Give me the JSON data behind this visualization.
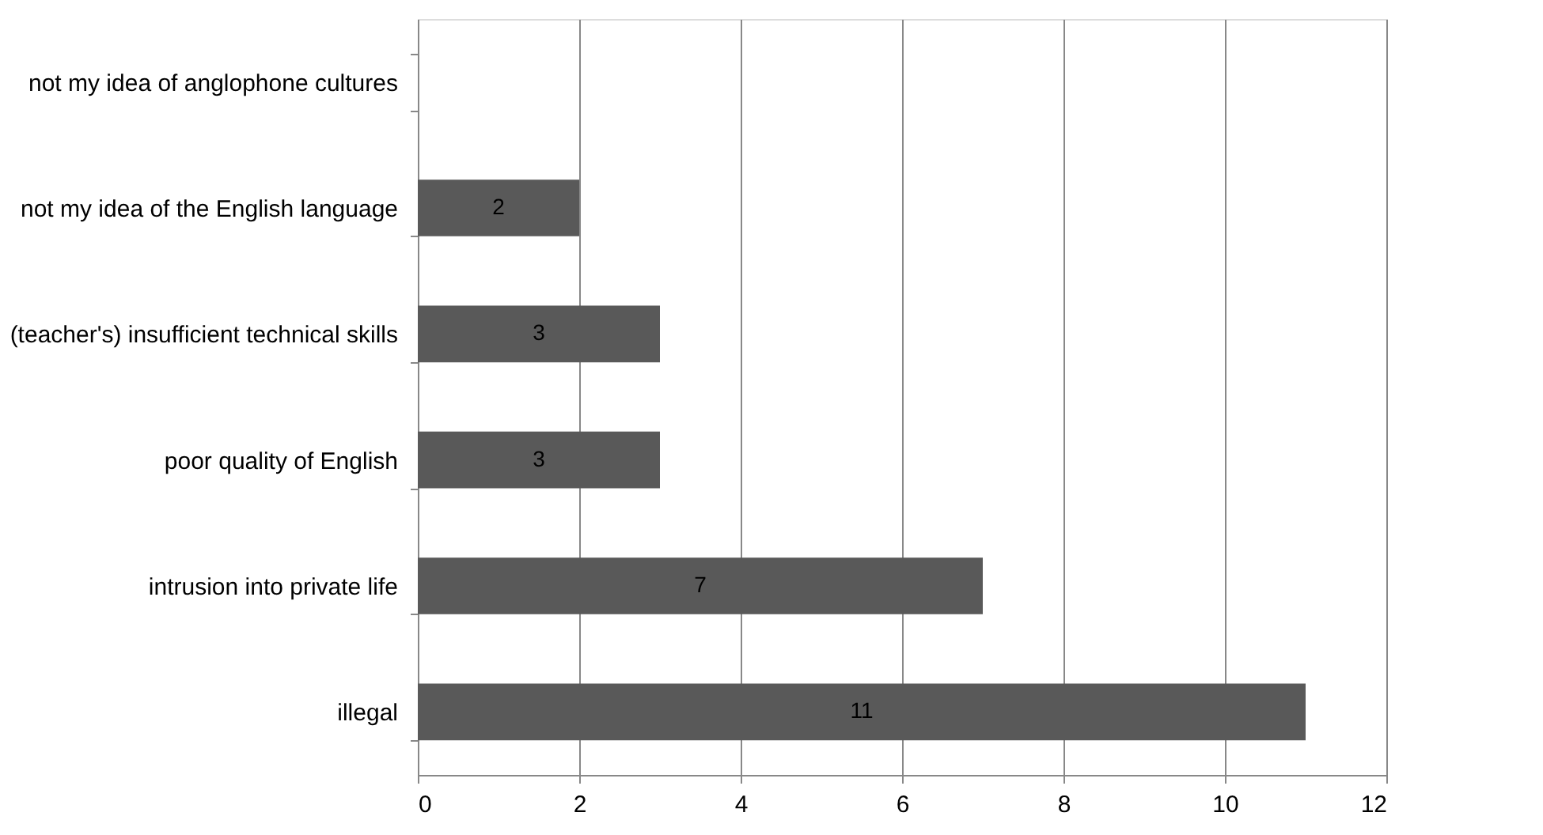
{
  "chart_data": {
    "type": "bar",
    "orientation": "horizontal",
    "categories": [
      "not my idea of anglophone cultures",
      "not my idea of the English language",
      "(teacher's) insufficient technical skills",
      "poor quality of English",
      "intrusion into private life",
      "illegal"
    ],
    "values": [
      0,
      2,
      3,
      3,
      7,
      11
    ],
    "value_labels": [
      null,
      "2",
      "3",
      "3",
      "7",
      "11"
    ],
    "color": "#595959",
    "xlim": [
      0,
      12
    ],
    "xticks": [
      0,
      2,
      4,
      6,
      8,
      10,
      12
    ],
    "grid": "x"
  }
}
